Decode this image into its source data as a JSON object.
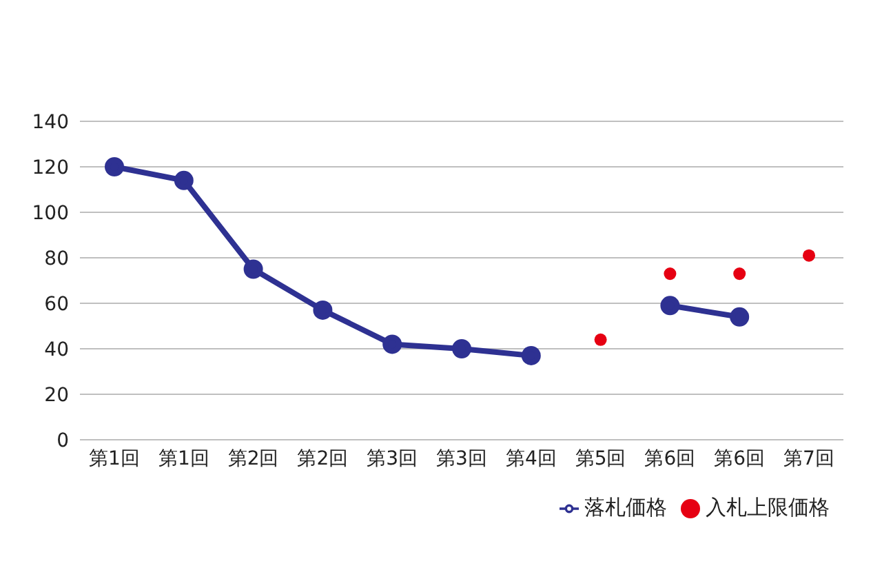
{
  "chart_data": {
    "type": "line",
    "categories": [
      "第1回",
      "第1回",
      "第2回",
      "第2回",
      "第3回",
      "第3回",
      "第4回",
      "第5回",
      "第6回",
      "第6回",
      "第7回"
    ],
    "series": [
      {
        "name": "落札価格",
        "color": "#2e3192",
        "values": [
          120,
          114,
          75,
          57,
          42,
          40,
          37,
          null,
          59,
          54,
          null
        ]
      },
      {
        "name": "入札上限価格",
        "type": "scatter",
        "color": "#e60012",
        "values": [
          null,
          null,
          null,
          null,
          null,
          null,
          null,
          44,
          73,
          73,
          81
        ]
      }
    ],
    "ylim": [
      0,
      140
    ],
    "yticks": [
      0,
      20,
      40,
      60,
      80,
      100,
      120,
      140
    ],
    "grid": "y",
    "legend": "bottom right",
    "marker": "circle"
  }
}
